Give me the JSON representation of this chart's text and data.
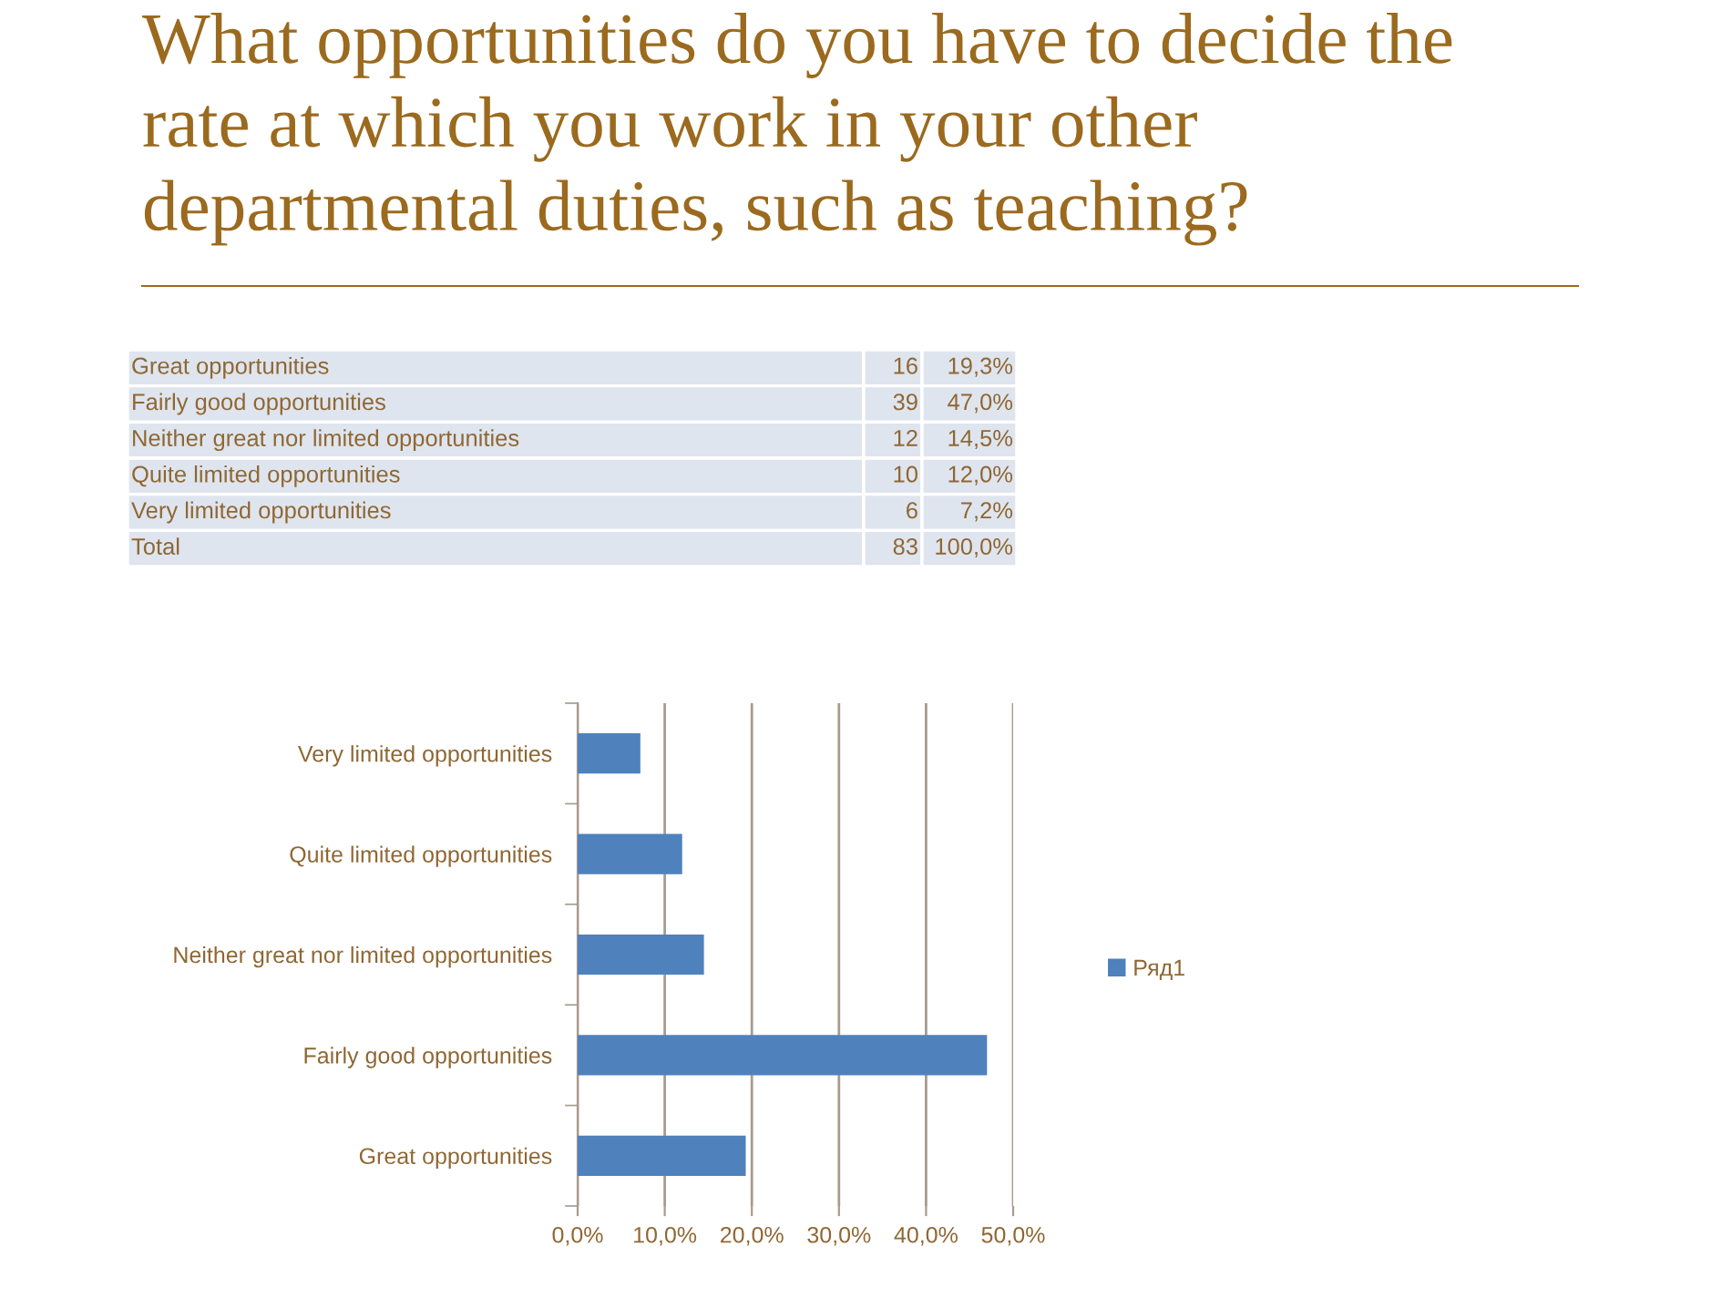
{
  "chart_data": [
    {
      "type": "other",
      "title": "What opportunities do you have to decide the rate at which you work in your other departmental duties, such as teaching?",
      "categories": [
        "Great opportunities",
        "Fairly good opportunities",
        "Neither great nor limited opportunities",
        "Quite limited opportunities",
        "Very limited opportunities",
        "Total"
      ],
      "series": [
        {
          "values": [
            16,
            39,
            12,
            10,
            6,
            83
          ],
          "value_labels": [
            "16",
            "39",
            "12",
            "10",
            "6",
            "83"
          ]
        },
        {
          "values": [
            19.3,
            47.0,
            14.5,
            12.0,
            7.2,
            100.0
          ],
          "value_labels": [
            "19,3%",
            "47,0%",
            "14,5%",
            "12,0%",
            "7,2%",
            "100,0%"
          ]
        }
      ]
    },
    {
      "type": "bar",
      "orientation": "horizontal",
      "categories": [
        "Very limited opportunities",
        "Quite limited opportunities",
        "Neither great nor limited opportunities",
        "Fairly good opportunities",
        "Great opportunities"
      ],
      "series": [
        {
          "name": "Ряд1",
          "color": "#4f81bd",
          "values": [
            7.2,
            12.0,
            14.5,
            47.0,
            19.3
          ]
        }
      ],
      "xlim": [
        0,
        50
      ],
      "xticks": [
        {
          "value": 0,
          "label": "0,0%"
        },
        {
          "value": 10,
          "label": "10,0%"
        },
        {
          "value": 20,
          "label": "20,0%"
        },
        {
          "value": 30,
          "label": "30,0%"
        },
        {
          "value": 40,
          "label": "40,0%"
        },
        {
          "value": 50,
          "label": "50,0%"
        }
      ],
      "grid": "x",
      "legend": "right"
    }
  ]
}
